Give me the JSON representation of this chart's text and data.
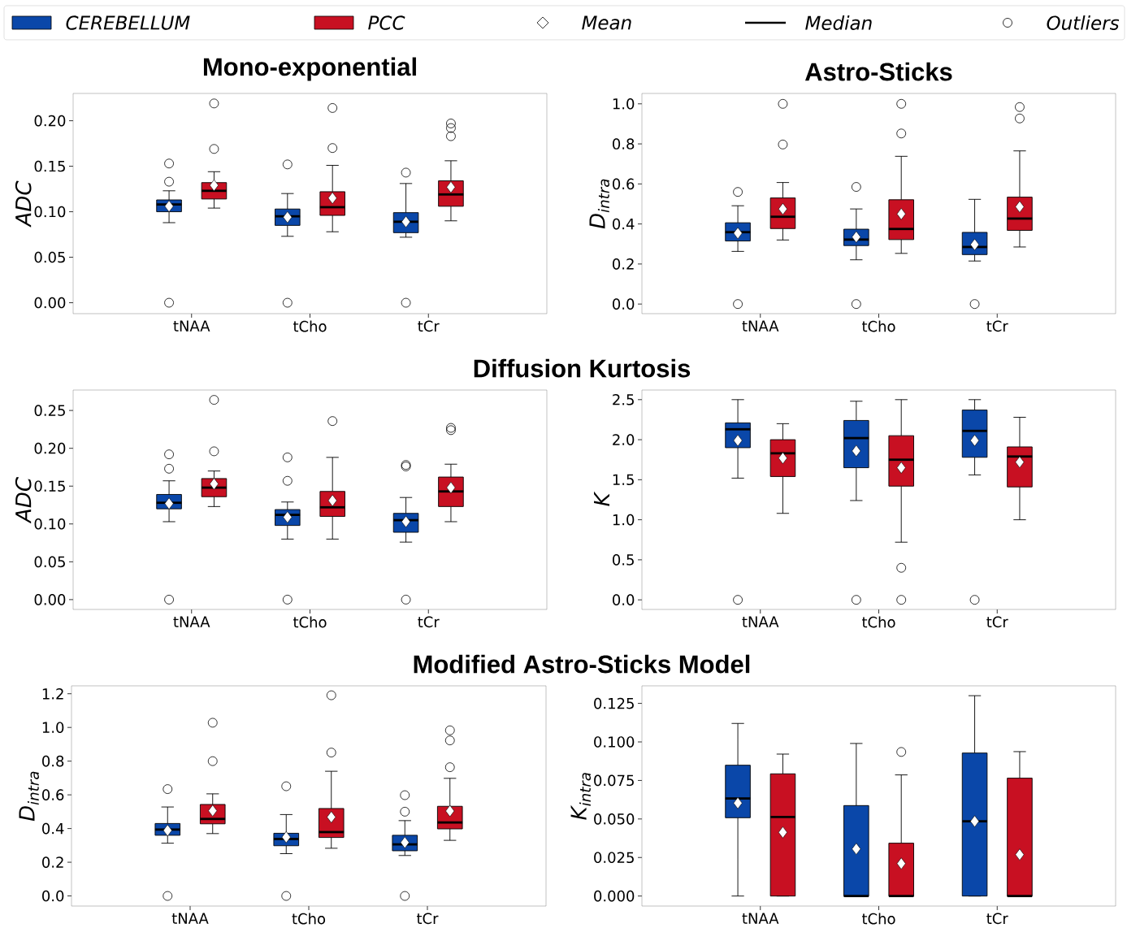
{
  "chart_data": [
    {
      "type": "box",
      "title": "Mono-exponential",
      "ylabel": "ADC",
      "categories": [
        "tNAA",
        "tCho",
        "tCr"
      ],
      "legend": "top",
      "annotations": [
        "Mean",
        "Median",
        "Outliers"
      ],
      "ylim": [
        -0.012,
        0.23
      ],
      "yticks": [
        {
          "value": 0,
          "label": "0.00"
        },
        {
          "value": 0.05,
          "label": "0.05"
        },
        {
          "value": 0.1,
          "label": "0.10"
        },
        {
          "value": 0.15,
          "label": "0.15"
        },
        {
          "value": 0.2,
          "label": "0.20"
        }
      ],
      "series": [
        {
          "name": "CEREBELLUM",
          "color": "#0a47a9",
          "boxes": [
            {
              "low": 0.088,
              "q1": 0.1,
              "median": 0.108,
              "q3": 0.113,
              "high": 0.123,
              "mean": 0.106,
              "outliers": [
                0.153,
                0.133,
                0
              ]
            },
            {
              "low": 0.073,
              "q1": 0.085,
              "median": 0.095,
              "q3": 0.103,
              "high": 0.12,
              "mean": 0.094,
              "outliers": [
                0.152,
                0
              ]
            },
            {
              "low": 0.072,
              "q1": 0.077,
              "median": 0.089,
              "q3": 0.099,
              "high": 0.131,
              "mean": 0.089,
              "outliers": [
                0.143,
                0
              ]
            }
          ]
        },
        {
          "name": "PCC",
          "color": "#c81022",
          "boxes": [
            {
              "low": 0.104,
              "q1": 0.114,
              "median": 0.123,
              "q3": 0.132,
              "high": 0.144,
              "mean": 0.129,
              "outliers": [
                0.219,
                0.169
              ]
            },
            {
              "low": 0.078,
              "q1": 0.096,
              "median": 0.105,
              "q3": 0.122,
              "high": 0.151,
              "mean": 0.115,
              "outliers": [
                0.214,
                0.17
              ]
            },
            {
              "low": 0.09,
              "q1": 0.106,
              "median": 0.119,
              "q3": 0.134,
              "high": 0.156,
              "mean": 0.127,
              "outliers": [
                0.197,
                0.192,
                0.183
              ]
            }
          ]
        }
      ]
    },
    {
      "type": "box",
      "title": "Astro-Sticks",
      "ylabel": "D$_{intra}$",
      "categories": [
        "tNAA",
        "tCho",
        "tCr"
      ],
      "ylim": [
        -0.048,
        1.052
      ],
      "yticks": [
        {
          "value": 0,
          "label": "0.0"
        },
        {
          "value": 0.2,
          "label": "0.2"
        },
        {
          "value": 0.4,
          "label": "0.4"
        },
        {
          "value": 0.6,
          "label": "0.6"
        },
        {
          "value": 0.8,
          "label": "0.8"
        },
        {
          "value": 1,
          "label": "1.0"
        }
      ],
      "series": [
        {
          "color": "#0a47a9",
          "boxes": [
            {
              "low": 0.263,
              "q1": 0.315,
              "median": 0.359,
              "q3": 0.406,
              "high": 0.491,
              "mean": 0.354,
              "outliers": [
                0.56,
                0
              ]
            },
            {
              "low": 0.221,
              "q1": 0.292,
              "median": 0.322,
              "q3": 0.374,
              "high": 0.475,
              "mean": 0.335,
              "outliers": [
                0.585,
                0
              ]
            },
            {
              "low": 0.215,
              "q1": 0.247,
              "median": 0.285,
              "q3": 0.358,
              "high": 0.523,
              "mean": 0.297,
              "outliers": [
                0
              ]
            }
          ]
        },
        {
          "color": "#c81022",
          "boxes": [
            {
              "low": 0.32,
              "q1": 0.377,
              "median": 0.436,
              "q3": 0.53,
              "high": 0.607,
              "mean": 0.475,
              "outliers": [
                1.0,
                0.797
              ]
            },
            {
              "low": 0.253,
              "q1": 0.322,
              "median": 0.375,
              "q3": 0.521,
              "high": 0.738,
              "mean": 0.45,
              "outliers": [
                1.0,
                0.852
              ]
            },
            {
              "low": 0.285,
              "q1": 0.368,
              "median": 0.427,
              "q3": 0.534,
              "high": 0.765,
              "mean": 0.486,
              "outliers": [
                0.984,
                0.927
              ]
            }
          ]
        }
      ]
    },
    {
      "type": "box",
      "title": "Diffusion Kurtosis",
      "ylabel": "ADC",
      "categories": [
        "tNAA",
        "tCho",
        "tCr"
      ],
      "ylim": [
        -0.013,
        0.277
      ],
      "yticks": [
        {
          "value": 0,
          "label": "0.00"
        },
        {
          "value": 0.05,
          "label": "0.05"
        },
        {
          "value": 0.1,
          "label": "0.10"
        },
        {
          "value": 0.15,
          "label": "0.15"
        },
        {
          "value": 0.2,
          "label": "0.20"
        },
        {
          "value": 0.25,
          "label": "0.25"
        }
      ],
      "series": [
        {
          "color": "#0a47a9",
          "boxes": [
            {
              "low": 0.103,
              "q1": 0.12,
              "median": 0.128,
              "q3": 0.139,
              "high": 0.157,
              "mean": 0.127,
              "outliers": [
                0.192,
                0.173,
                0
              ]
            },
            {
              "low": 0.08,
              "q1": 0.098,
              "median": 0.112,
              "q3": 0.119,
              "high": 0.129,
              "mean": 0.109,
              "outliers": [
                0.188,
                0.157,
                0
              ]
            },
            {
              "low": 0.076,
              "q1": 0.089,
              "median": 0.105,
              "q3": 0.114,
              "high": 0.135,
              "mean": 0.103,
              "outliers": [
                0.178,
                0.176,
                0
              ]
            }
          ]
        },
        {
          "color": "#c81022",
          "boxes": [
            {
              "low": 0.123,
              "q1": 0.136,
              "median": 0.148,
              "q3": 0.16,
              "high": 0.17,
              "mean": 0.153,
              "outliers": [
                0.264,
                0.196
              ]
            },
            {
              "low": 0.08,
              "q1": 0.11,
              "median": 0.122,
              "q3": 0.143,
              "high": 0.188,
              "mean": 0.131,
              "outliers": [
                0.236
              ]
            },
            {
              "low": 0.103,
              "q1": 0.123,
              "median": 0.143,
              "q3": 0.162,
              "high": 0.179,
              "mean": 0.148,
              "outliers": [
                0.227,
                0.224
              ]
            }
          ]
        }
      ]
    },
    {
      "type": "box",
      "ylabel": "K",
      "categories": [
        "tNAA",
        "tCho",
        "tCr"
      ],
      "ylim": [
        -0.12,
        2.62
      ],
      "yticks": [
        {
          "value": 0,
          "label": "0.0"
        },
        {
          "value": 0.5,
          "label": "0.5"
        },
        {
          "value": 1,
          "label": "1.0"
        },
        {
          "value": 1.5,
          "label": "1.5"
        },
        {
          "value": 2,
          "label": "2.0"
        },
        {
          "value": 2.5,
          "label": "2.5"
        }
      ],
      "series": [
        {
          "color": "#0a47a9",
          "boxes": [
            {
              "low": 1.52,
              "q1": 1.9,
              "median": 2.13,
              "q3": 2.21,
              "high": 2.5,
              "mean": 1.99,
              "outliers": [
                0
              ]
            },
            {
              "low": 1.24,
              "q1": 1.65,
              "median": 2.02,
              "q3": 2.24,
              "high": 2.48,
              "mean": 1.86,
              "outliers": [
                0
              ]
            },
            {
              "low": 1.56,
              "q1": 1.78,
              "median": 2.11,
              "q3": 2.37,
              "high": 2.5,
              "mean": 1.99,
              "outliers": [
                0
              ]
            }
          ]
        },
        {
          "color": "#c81022",
          "boxes": [
            {
              "low": 1.08,
              "q1": 1.54,
              "median": 1.83,
              "q3": 2.0,
              "high": 2.2,
              "mean": 1.77
            },
            {
              "low": 0.72,
              "q1": 1.42,
              "median": 1.75,
              "q3": 2.05,
              "high": 2.5,
              "mean": 1.65,
              "outliers": [
                0.4,
                0
              ]
            },
            {
              "low": 1.0,
              "q1": 1.41,
              "median": 1.79,
              "q3": 1.91,
              "high": 2.28,
              "mean": 1.72
            }
          ]
        }
      ]
    },
    {
      "type": "box",
      "title": "Modified Astro-Sticks Model",
      "ylabel": "D$_{intra}$",
      "categories": [
        "tNAA",
        "tCho",
        "tCr"
      ],
      "ylim": [
        -0.06,
        1.247
      ],
      "yticks": [
        {
          "value": 0,
          "label": "0.0"
        },
        {
          "value": 0.2,
          "label": "0.2"
        },
        {
          "value": 0.4,
          "label": "0.4"
        },
        {
          "value": 0.6,
          "label": "0.6"
        },
        {
          "value": 0.8,
          "label": "0.8"
        },
        {
          "value": 1,
          "label": "1.0"
        },
        {
          "value": 1.2,
          "label": "1.2"
        }
      ],
      "series": [
        {
          "color": "#0a47a9",
          "boxes": [
            {
              "low": 0.313,
              "q1": 0.36,
              "median": 0.394,
              "q3": 0.43,
              "high": 0.528,
              "mean": 0.389,
              "outliers": [
                0.634,
                0
              ]
            },
            {
              "low": 0.251,
              "q1": 0.298,
              "median": 0.338,
              "q3": 0.372,
              "high": 0.483,
              "mean": 0.349,
              "outliers": [
                0.651,
                0
              ]
            },
            {
              "low": 0.24,
              "q1": 0.268,
              "median": 0.306,
              "q3": 0.36,
              "high": 0.447,
              "mean": 0.317,
              "outliers": [
                0.598,
                0.5,
                0
              ]
            }
          ]
        },
        {
          "color": "#c81022",
          "boxes": [
            {
              "low": 0.37,
              "q1": 0.428,
              "median": 0.457,
              "q3": 0.543,
              "high": 0.606,
              "mean": 0.506,
              "outliers": [
                1.028,
                0.8
              ]
            },
            {
              "low": 0.283,
              "q1": 0.347,
              "median": 0.379,
              "q3": 0.519,
              "high": 0.74,
              "mean": 0.468,
              "outliers": [
                1.191,
                0.851
              ]
            },
            {
              "low": 0.33,
              "q1": 0.398,
              "median": 0.436,
              "q3": 0.532,
              "high": 0.698,
              "mean": 0.504,
              "outliers": [
                0.983,
                0.923,
                0.764
              ]
            }
          ]
        }
      ]
    },
    {
      "type": "box",
      "ylabel": "K$_{intra}$",
      "categories": [
        "tNAA",
        "tCho",
        "tCr"
      ],
      "ylim": [
        -0.0065,
        0.1364
      ],
      "yticks": [
        {
          "value": 0,
          "label": "0.000"
        },
        {
          "value": 0.025,
          "label": "0.025"
        },
        {
          "value": 0.05,
          "label": "0.050"
        },
        {
          "value": 0.075,
          "label": "0.075"
        },
        {
          "value": 0.1,
          "label": "0.100"
        },
        {
          "value": 0.125,
          "label": "0.125"
        }
      ],
      "series": [
        {
          "color": "#0a47a9",
          "boxes": [
            {
              "low": 0,
              "q1": 0.0508,
              "median": 0.0633,
              "q3": 0.0849,
              "high": 0.112,
              "mean": 0.0603
            },
            {
              "low": 0,
              "q1": 0,
              "median": 0,
              "q3": 0.0587,
              "high": 0.099,
              "mean": 0.0306
            },
            {
              "low": 0,
              "q1": 0,
              "median": 0.0485,
              "q3": 0.0928,
              "high": 0.13,
              "mean": 0.0485
            }
          ]
        },
        {
          "color": "#c81022",
          "boxes": [
            {
              "low": 0,
              "q1": 0,
              "median": 0.0513,
              "q3": 0.0793,
              "high": 0.0921,
              "mean": 0.0413
            },
            {
              "low": 0,
              "q1": 0,
              "median": 0,
              "q3": 0.0343,
              "high": 0.0786,
              "mean": 0.0211,
              "outliers": [
                0.0935
              ]
            },
            {
              "low": 0,
              "q1": 0,
              "median": 0,
              "q3": 0.0765,
              "high": 0.0937,
              "mean": 0.0269
            }
          ]
        }
      ]
    }
  ]
}
